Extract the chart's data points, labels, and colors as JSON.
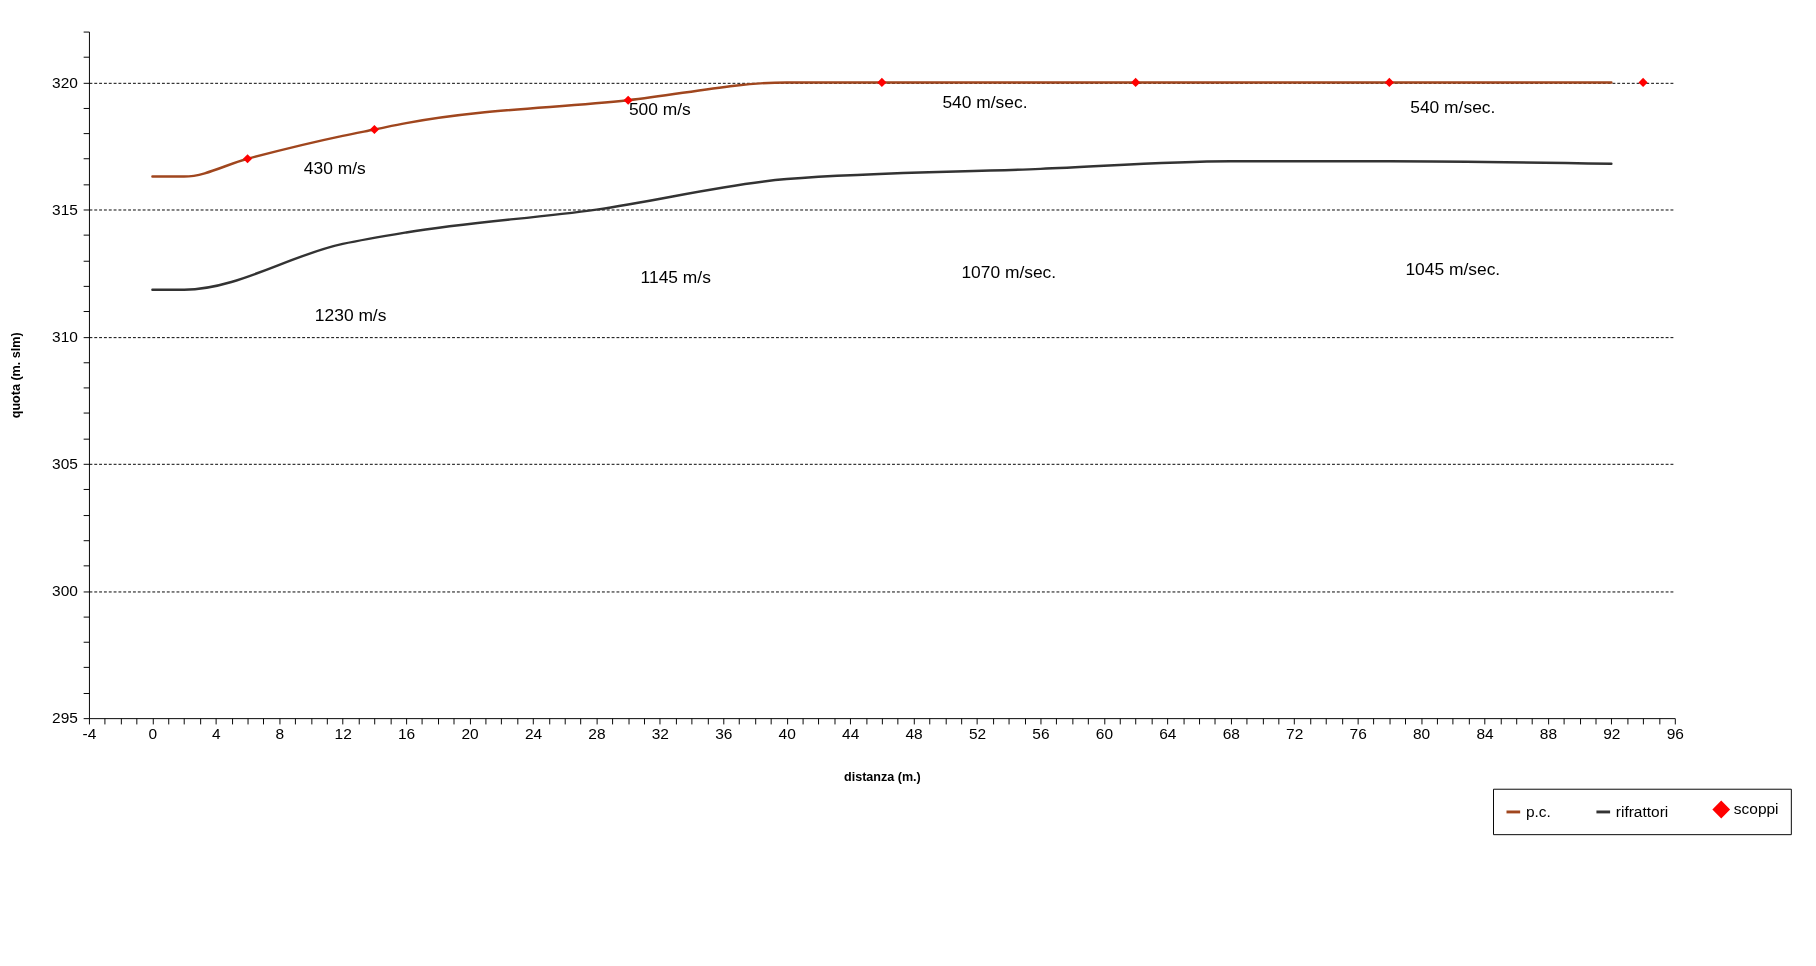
{
  "chart_data": {
    "type": "line",
    "xlabel": "distanza (m.)",
    "ylabel": "quota (m. slm)",
    "series": [
      {
        "name": "p.c.",
        "color": "#a0461e",
        "x": [
          0,
          2,
          6,
          12,
          14,
          16,
          30,
          40,
          46,
          62,
          78,
          92
        ],
        "values": [
          316.3,
          316.3,
          317.0,
          317.9,
          318.15,
          318.4,
          319.3,
          320,
          320,
          320,
          320,
          320
        ]
      },
      {
        "name": "rifrattori",
        "color": "#333333",
        "x": [
          0,
          2,
          12,
          16,
          28,
          40,
          56,
          68,
          78,
          92
        ],
        "values": [
          311.85,
          311.85,
          313.65,
          314.1,
          315.0,
          316.2,
          316.6,
          316.9,
          316.9,
          316.8
        ]
      },
      {
        "name": "scoppi",
        "type": "scatter",
        "marker": "diamond",
        "color": "#ff0000",
        "x": [
          6,
          14,
          30,
          46,
          62,
          78,
          94
        ],
        "values": [
          317.0,
          318.15,
          319.3,
          320,
          320,
          320,
          320
        ]
      }
    ],
    "annotations": [
      "430 m/s",
      "500 m/s",
      "540 m/sec.",
      "540 m/sec.",
      "1230 m/s",
      "1145 m/s",
      "1070 m/sec.",
      "1045 m/sec."
    ],
    "xlim": [
      -4,
      96
    ],
    "xticks": [
      -4,
      {
        "value": -3,
        "label": null
      },
      {
        "value": -2,
        "label": null
      },
      {
        "value": -1,
        "label": null
      },
      0,
      {
        "value": 1,
        "label": null
      },
      {
        "value": 2,
        "label": null
      },
      {
        "value": 3,
        "label": null
      },
      4,
      {
        "value": 5,
        "label": null
      },
      {
        "value": 6,
        "label": null
      },
      {
        "value": 7,
        "label": null
      },
      8,
      {
        "value": 9,
        "label": null
      },
      {
        "value": 10,
        "label": null
      },
      {
        "value": 11,
        "label": null
      },
      12,
      {
        "value": 13,
        "label": null
      },
      {
        "value": 14,
        "label": null
      },
      {
        "value": 15,
        "label": null
      },
      16,
      {
        "value": 17,
        "label": null
      },
      {
        "value": 18,
        "label": null
      },
      {
        "value": 19,
        "label": null
      },
      20,
      {
        "value": 21,
        "label": null
      },
      {
        "value": 22,
        "label": null
      },
      {
        "value": 23,
        "label": null
      },
      24,
      {
        "value": 25,
        "label": null
      },
      {
        "value": 26,
        "label": null
      },
      {
        "value": 27,
        "label": null
      },
      28,
      {
        "value": 29,
        "label": null
      },
      {
        "value": 30,
        "label": null
      },
      {
        "value": 31,
        "label": null
      },
      32,
      {
        "value": 33,
        "label": null
      },
      {
        "value": 34,
        "label": null
      },
      {
        "value": 35,
        "label": null
      },
      36,
      {
        "value": 37,
        "label": null
      },
      {
        "value": 38,
        "label": null
      },
      {
        "value": 39,
        "label": null
      },
      40,
      {
        "value": 41,
        "label": null
      },
      {
        "value": 42,
        "label": null
      },
      {
        "value": 43,
        "label": null
      },
      44,
      {
        "value": 45,
        "label": null
      },
      {
        "value": 46,
        "label": null
      },
      {
        "value": 47,
        "label": null
      },
      48,
      {
        "value": 49,
        "label": null
      },
      {
        "value": 50,
        "label": null
      },
      {
        "value": 51,
        "label": null
      },
      52,
      {
        "value": 53,
        "label": null
      },
      {
        "value": 54,
        "label": null
      },
      {
        "value": 55,
        "label": null
      },
      56,
      {
        "value": 57,
        "label": null
      },
      {
        "value": 58,
        "label": null
      },
      {
        "value": 59,
        "label": null
      },
      60,
      {
        "value": 61,
        "label": null
      },
      {
        "value": 62,
        "label": null
      },
      {
        "value": 63,
        "label": null
      },
      64,
      {
        "value": 65,
        "label": null
      },
      {
        "value": 66,
        "label": null
      },
      {
        "value": 67,
        "label": null
      },
      68,
      {
        "value": 69,
        "label": null
      },
      {
        "value": 70,
        "label": null
      },
      {
        "value": 71,
        "label": null
      },
      72,
      {
        "value": 73,
        "label": null
      },
      {
        "value": 74,
        "label": null
      },
      {
        "value": 75,
        "label": null
      },
      76,
      {
        "value": 77,
        "label": null
      },
      {
        "value": 78,
        "label": null
      },
      {
        "value": 79,
        "label": null
      },
      80,
      {
        "value": 81,
        "label": null
      },
      {
        "value": 82,
        "label": null
      },
      {
        "value": 83,
        "label": null
      },
      84,
      {
        "value": 85,
        "label": null
      },
      {
        "value": 86,
        "label": null
      },
      {
        "value": 87,
        "label": null
      },
      88,
      {
        "value": 89,
        "label": null
      },
      {
        "value": 90,
        "label": null
      },
      {
        "value": 91,
        "label": null
      },
      92,
      {
        "value": 93,
        "label": null
      },
      {
        "value": 94,
        "label": null
      },
      {
        "value": 95,
        "label": null
      },
      96
    ],
    "ylim": [
      295,
      322
    ],
    "yticks": [
      295,
      {
        "value": 296,
        "label": null
      },
      {
        "value": 297,
        "label": null
      },
      {
        "value": 298,
        "label": null
      },
      {
        "value": 299,
        "label": null
      },
      300,
      {
        "value": 301,
        "label": null
      },
      {
        "value": 302,
        "label": null
      },
      {
        "value": 303,
        "label": null
      },
      {
        "value": 304,
        "label": null
      },
      305,
      {
        "value": 306,
        "label": null
      },
      {
        "value": 307,
        "label": null
      },
      {
        "value": 308,
        "label": null
      },
      {
        "value": 309,
        "label": null
      },
      310,
      {
        "value": 311,
        "label": null
      },
      {
        "value": 312,
        "label": null
      },
      {
        "value": 313,
        "label": null
      },
      {
        "value": 314,
        "label": null
      },
      315,
      {
        "value": 316,
        "label": null
      },
      {
        "value": 317,
        "label": null
      },
      {
        "value": 318,
        "label": null
      },
      {
        "value": 319,
        "label": null
      },
      320,
      {
        "value": 321,
        "label": null
      },
      {
        "value": 322,
        "label": null
      }
    ],
    "grid": "y",
    "legend": "bottom right",
    "line_style": "solid"
  }
}
